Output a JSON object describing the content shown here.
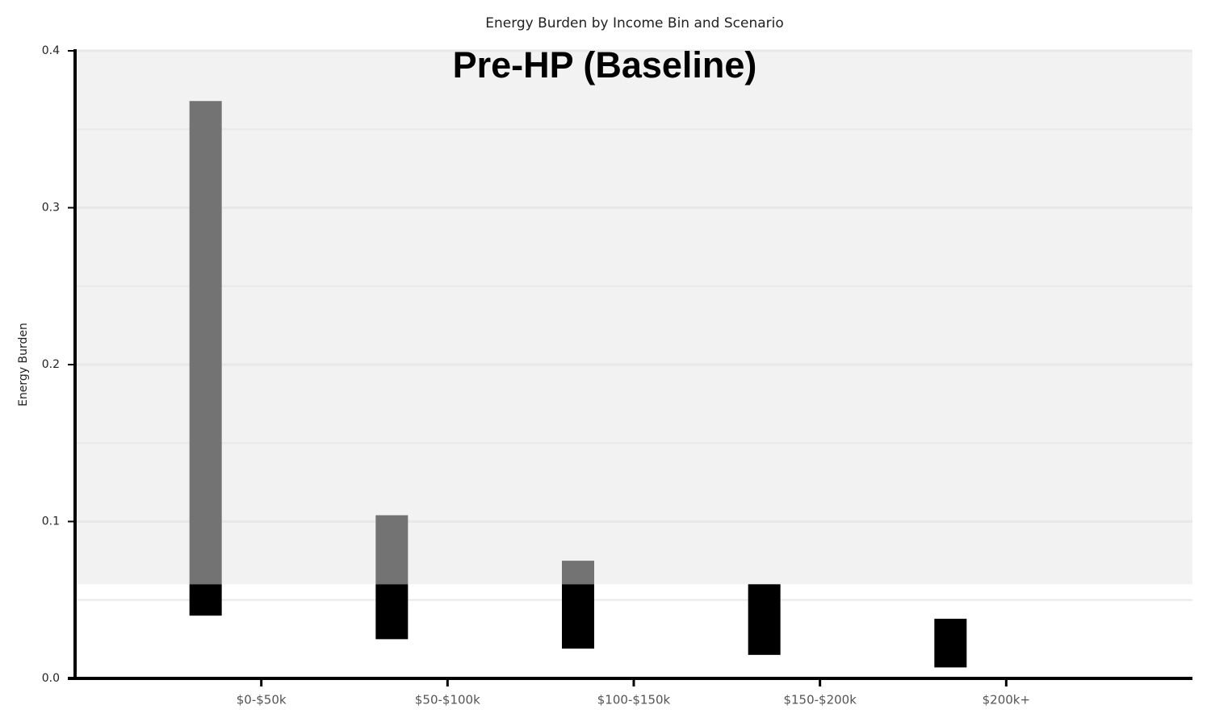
{
  "chart_data": {
    "type": "range_bar",
    "title": "Energy Burden by Income Bin and Scenario",
    "annotation": "Pre-HP (Baseline)",
    "y_label": "Energy Burden",
    "categories": [
      "$0-$50k",
      "$50-$100k",
      "$100-$150k",
      "$150-$200k",
      "$200k+"
    ],
    "values": [
      [
        0.04,
        0.368
      ],
      [
        0.025,
        0.104
      ],
      [
        0.019,
        0.075
      ],
      [
        0.015,
        0.06
      ],
      [
        0.007,
        0.038
      ]
    ],
    "threshold": 0.06,
    "color_below": "#000000",
    "color_above": "#737373",
    "shade_color": "#f2f2f2",
    "ylim": [
      0,
      0.4
    ],
    "yticks": [
      {
        "value": 0,
        "label": "0.0"
      },
      0.1,
      0.2,
      0.3,
      0.4
    ],
    "minor_yticks": [
      0.05,
      0.15,
      0.25,
      0.35
    ],
    "grid": true
  }
}
